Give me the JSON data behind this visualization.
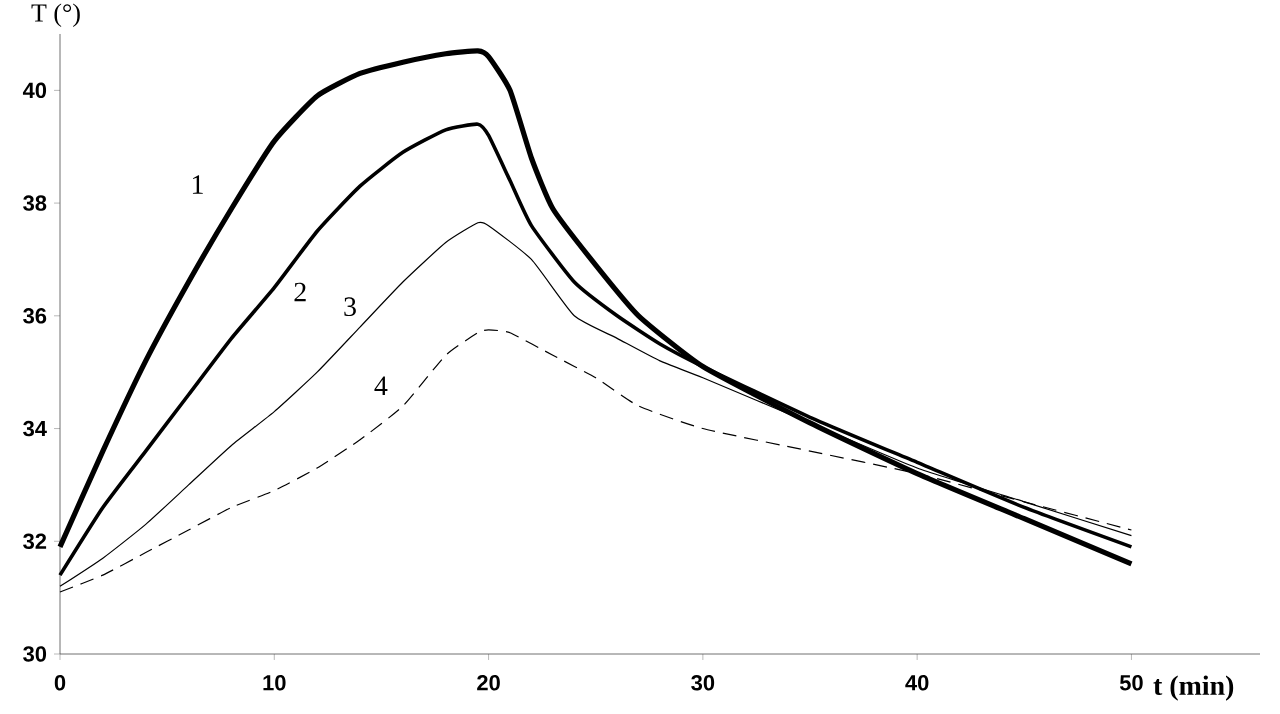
{
  "chart_data": {
    "type": "line",
    "xlabel": "t (min)",
    "ylabel": "T (°)",
    "xlim": [
      0,
      56
    ],
    "ylim": [
      30,
      41
    ],
    "xticks": [
      0,
      10,
      20,
      30,
      40,
      50
    ],
    "yticks": [
      30,
      32,
      34,
      36,
      38,
      40
    ],
    "grid": false,
    "legend": false,
    "marker": "none",
    "series": [
      {
        "name": "1",
        "color": "#000000",
        "line_style": "solid",
        "x": [
          0,
          2,
          4,
          6,
          8,
          10,
          12,
          14,
          16,
          18,
          19.5,
          20,
          21,
          22,
          23,
          25,
          27,
          30,
          35,
          40,
          45,
          50
        ],
        "values": [
          31.9,
          33.6,
          35.2,
          36.6,
          37.9,
          39.1,
          39.9,
          40.3,
          40.5,
          40.65,
          40.7,
          40.6,
          40.0,
          38.8,
          37.9,
          36.9,
          36.0,
          35.1,
          34.1,
          33.2,
          32.4,
          31.6
        ]
      },
      {
        "name": "2",
        "color": "#000000",
        "line_style": "solid",
        "x": [
          0,
          2,
          4,
          6,
          8,
          10,
          12,
          14,
          16,
          18,
          19.5,
          20,
          21,
          22,
          24,
          26,
          28,
          30,
          35,
          40,
          45,
          50
        ],
        "values": [
          31.4,
          32.6,
          33.6,
          34.6,
          35.6,
          36.5,
          37.5,
          38.3,
          38.9,
          39.3,
          39.4,
          39.2,
          38.4,
          37.6,
          36.6,
          36.0,
          35.5,
          35.1,
          34.2,
          33.4,
          32.6,
          31.9
        ]
      },
      {
        "name": "3",
        "color": "#000000",
        "line_style": "solid",
        "x": [
          0,
          2,
          4,
          6,
          8,
          10,
          12,
          14,
          16,
          18,
          19.5,
          20,
          22,
          24,
          26,
          28,
          30,
          35,
          40,
          45,
          50
        ],
        "values": [
          31.2,
          31.7,
          32.3,
          33.0,
          33.7,
          34.3,
          35.0,
          35.8,
          36.6,
          37.3,
          37.65,
          37.6,
          37.0,
          36.0,
          35.6,
          35.2,
          34.9,
          34.1,
          33.3,
          32.7,
          32.1
        ]
      },
      {
        "name": "4",
        "color": "#000000",
        "line_style": "dashed",
        "x": [
          0,
          2,
          4,
          6,
          8,
          10,
          12,
          14,
          16,
          18,
          19.5,
          20,
          21,
          23,
          25,
          27,
          30,
          35,
          40,
          45,
          50
        ],
        "values": [
          31.1,
          31.4,
          31.8,
          32.2,
          32.6,
          32.9,
          33.3,
          33.8,
          34.4,
          35.3,
          35.7,
          35.75,
          35.7,
          35.3,
          34.9,
          34.4,
          34.0,
          33.6,
          33.2,
          32.7,
          32.2
        ]
      }
    ]
  }
}
